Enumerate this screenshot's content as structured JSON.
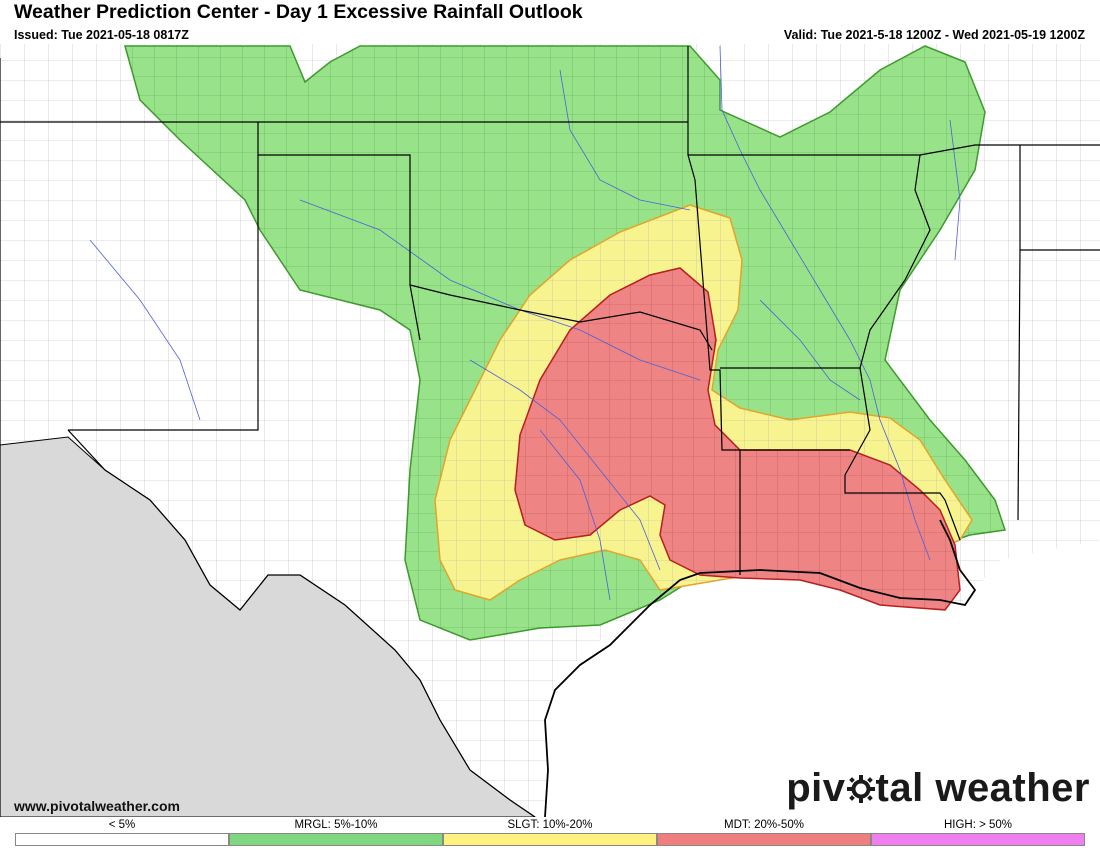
{
  "header": {
    "title": "Weather Prediction Center - Day 1 Excessive Rainfall Outlook",
    "issued": "Issued: Tue 2021-05-18 0817Z",
    "valid": "Valid: Tue 2021-5-18 1200Z - Wed 2021-05-19 1200Z"
  },
  "footer": {
    "website": "www.pivotalweather.com",
    "brand": {
      "before": "piv",
      "after": "tal weather",
      "icon": "gear-sun-icon"
    }
  },
  "legend": [
    {
      "label": "< 5%",
      "color": "#ffffff"
    },
    {
      "label": "MRGL: 5%-10%",
      "color": "#7fd87f"
    },
    {
      "label": "SLGT: 10%-20%",
      "color": "#fff27f"
    },
    {
      "label": "MDT: 20%-50%",
      "color": "#ef7f7f"
    },
    {
      "label": "HIGH: > 50%",
      "color": "#ef7fef"
    }
  ],
  "map": {
    "colors": {
      "background": "#ffffff",
      "mexico": "#d9d9d9",
      "mrgl_fill": "#98e38a",
      "mrgl_edge": "#3e9a2e",
      "slgt_fill": "#f7f38e",
      "slgt_edge": "#e3a42a",
      "mdt_fill": "#ee8484",
      "mdt_edge": "#b81f1f",
      "state_lines": "#000000",
      "county_lines": "#b5b5b5",
      "rivers": "#4f5fdc"
    }
  }
}
